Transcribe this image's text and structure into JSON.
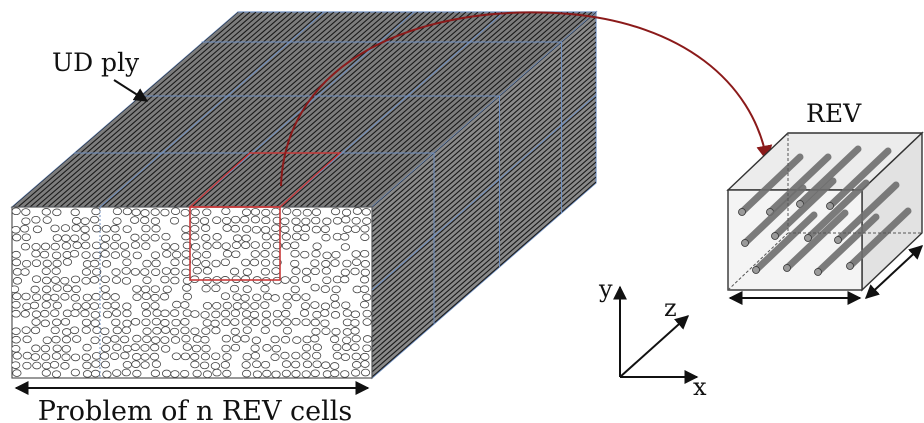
{
  "labels": {
    "ud_ply": "UD ply",
    "rev": "REV",
    "problem": "Problem of n REV cells",
    "axis_x": "x",
    "axis_y": "y",
    "axis_z": "z"
  },
  "colors": {
    "ply_top": "#7d7d7d",
    "ply_side": "#8a8a8a",
    "fiber_line": "#1a1a1a",
    "grid_line": "#6f8fc0",
    "highlight": "#c83a3a",
    "transfer_arrow": "#8b1a1a",
    "rev_cube_edge": "#333333",
    "rev_fiber": "#6e6e6e"
  },
  "icons": {
    "transfer_arrow": "curved-arrow-icon",
    "axes": "xyz-axes-icon"
  }
}
